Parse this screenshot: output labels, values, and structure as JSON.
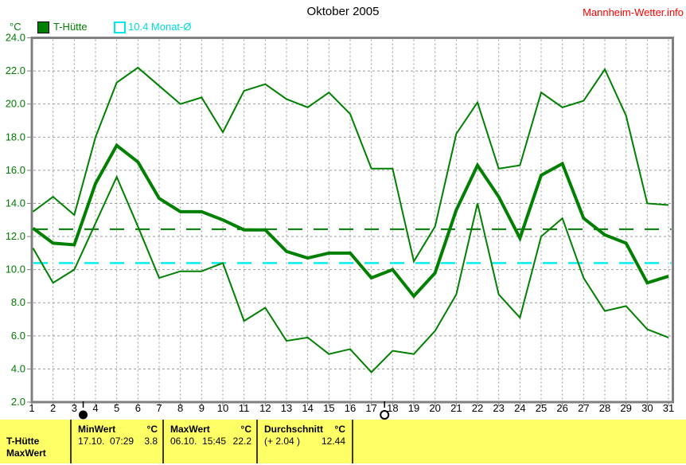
{
  "title": "Oktober 2005",
  "site": "Mannheim-Wetter.info",
  "y_axis_unit": "°C",
  "legend": [
    {
      "label": "T-Hütte",
      "swatch": "filled-square",
      "color": "#008000"
    },
    {
      "label": "10.4 Monat-Ø",
      "swatch": "open-square",
      "color": "#00dcdc"
    }
  ],
  "chart_data": {
    "type": "line",
    "title": "Oktober 2005",
    "ylabel": "°C",
    "xlabel": "",
    "ylim": [
      2.0,
      24.0
    ],
    "ytick_step": 2.0,
    "grid": true,
    "x": [
      1,
      2,
      3,
      4,
      5,
      6,
      7,
      8,
      9,
      10,
      11,
      12,
      13,
      14,
      15,
      16,
      17,
      18,
      19,
      20,
      21,
      22,
      23,
      24,
      25,
      26,
      27,
      28,
      29,
      30,
      31
    ],
    "series": [
      {
        "name": "T-Hütte Maximum",
        "color": "#008000",
        "width": 2,
        "values": [
          13.5,
          14.4,
          13.3,
          18.0,
          21.3,
          22.2,
          21.1,
          20.0,
          20.4,
          18.3,
          20.8,
          21.2,
          20.3,
          19.8,
          20.7,
          19.4,
          16.1,
          16.1,
          10.5,
          12.6,
          18.2,
          20.1,
          16.1,
          16.3,
          20.7,
          19.8,
          20.2,
          22.1,
          19.3,
          14.0,
          13.9
        ]
      },
      {
        "name": "T-Hütte Mittel",
        "color": "#008000",
        "width": 4,
        "values": [
          12.5,
          11.6,
          11.5,
          15.2,
          17.5,
          16.5,
          14.3,
          13.5,
          13.5,
          13.0,
          12.4,
          12.4,
          11.1,
          10.7,
          11.0,
          11.0,
          9.5,
          10.0,
          8.4,
          9.8,
          13.6,
          16.3,
          14.4,
          11.9,
          15.7,
          16.4,
          13.1,
          12.1,
          11.6,
          9.2,
          9.6
        ]
      },
      {
        "name": "T-Hütte Minimum",
        "color": "#008000",
        "width": 2,
        "values": [
          11.3,
          9.2,
          10.0,
          12.8,
          15.6,
          12.6,
          9.5,
          9.9,
          9.9,
          10.4,
          6.9,
          7.7,
          5.7,
          5.9,
          4.9,
          5.2,
          3.8,
          5.1,
          4.9,
          6.3,
          8.5,
          14.0,
          8.5,
          7.1,
          12.0,
          13.1,
          9.5,
          7.5,
          7.8,
          6.4,
          5.9
        ]
      }
    ],
    "reference_lines": [
      {
        "label": "Durchschnitt",
        "value": 12.44,
        "color": "#007a00",
        "style": "dashed"
      },
      {
        "label": "10.4 Monat-Ø",
        "value": 10.4,
        "color": "#00eeee",
        "style": "dashed"
      }
    ],
    "moon_markers": [
      {
        "type": "new-moon",
        "day": 3.42
      },
      {
        "type": "full-moon",
        "day": 17.62
      }
    ],
    "legend_position": "top-left"
  },
  "table": {
    "row_labels": [
      "T-Hütte",
      "MaxWert"
    ],
    "columns": [
      {
        "header": "MinWert",
        "unit": "°C",
        "value_left": "17.10.  07:29",
        "value_right": "3.8"
      },
      {
        "header": "MaxWert",
        "unit": "°C",
        "value_left": "06.10.  15:45",
        "value_right": "22.2"
      },
      {
        "header": "Durchschnitt",
        "unit": "°C",
        "value_left": "(+ 2.04 )",
        "value_right": "12.44"
      }
    ]
  },
  "colors": {
    "series_green": "#008000",
    "avg_line_green": "#007a00",
    "month_avg_cyan": "#00eeee",
    "watermark_red": "#ff0000",
    "table_bg_yellow": "#ffff66",
    "grid_gray": "#9a9a9a",
    "frame_gray": "#808080"
  }
}
